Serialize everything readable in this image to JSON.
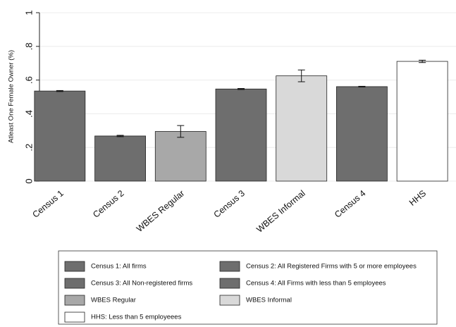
{
  "chart_data": {
    "type": "bar",
    "y_label": "Atleast One Female Owner (%)",
    "categories": [
      "Census 1",
      "Census 2",
      "WBES Regular",
      "Census 3",
      "WBES Informal",
      "Census 4",
      "HHS"
    ],
    "values": [
      0.535,
      0.268,
      0.295,
      0.547,
      0.625,
      0.561,
      0.711
    ],
    "errors": [
      0.003,
      0.004,
      0.035,
      0.003,
      0.035,
      0.002,
      0.007
    ],
    "colors": [
      "#6e6e6e",
      "#6e6e6e",
      "#a8a8a8",
      "#6e6e6e",
      "#d9d9d9",
      "#6e6e6e",
      "#ffffff"
    ],
    "ylim": [
      0,
      1
    ],
    "yticks": [
      0,
      {
        "value": 0.2,
        "label": ".2"
      },
      {
        "value": 0.4,
        "label": ".4"
      },
      {
        "value": 0.6,
        "label": ".6"
      },
      {
        "value": 0.8,
        "label": ".8"
      },
      1
    ],
    "grid": true,
    "legend": [
      {
        "label": "Census 1: All firms",
        "color": "#6e6e6e"
      },
      {
        "label": "Census 2:  All Registered Firms with 5 or more employees",
        "color": "#6e6e6e"
      },
      {
        "label": "Census 3: All Non-registered firms",
        "color": "#6e6e6e"
      },
      {
        "label": "Census 4: All Firms with less than 5 employees",
        "color": "#6e6e6e"
      },
      {
        "label": "WBES Regular",
        "color": "#a8a8a8"
      },
      {
        "label": "WBES Informal",
        "color": "#d9d9d9"
      },
      {
        "label": "HHS: Less than 5 employeees",
        "color": "#ffffff"
      }
    ]
  }
}
